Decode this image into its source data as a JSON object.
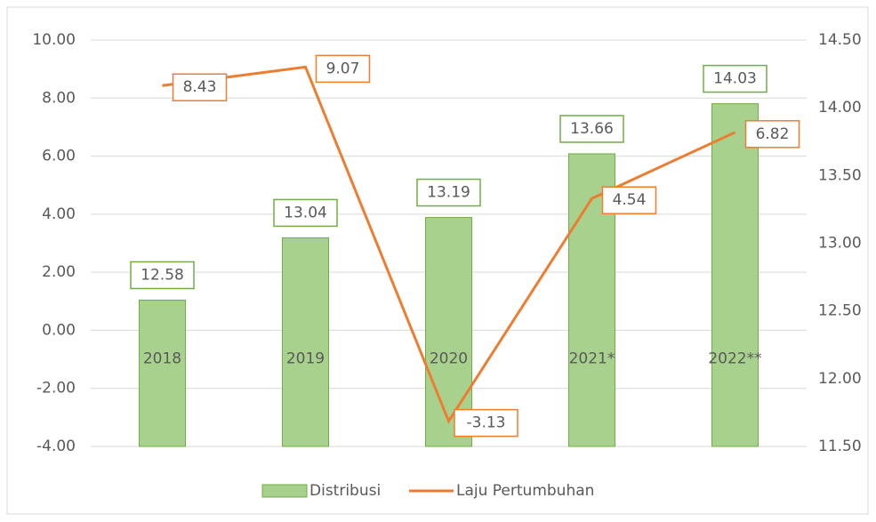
{
  "chart_data": {
    "type": "bar-line",
    "categories": [
      "2018",
      "2019",
      "2020",
      "2021*",
      "2022**"
    ],
    "series": [
      {
        "name": "Distribusi",
        "type": "bar",
        "axis": "y2",
        "color": "#a9d18e",
        "values": [
          12.58,
          13.04,
          13.19,
          13.66,
          14.03
        ]
      },
      {
        "name": "Laju Pertumbuhan",
        "type": "line",
        "axis": "y",
        "color": "#ed7d31",
        "values": [
          8.43,
          9.07,
          -3.13,
          4.54,
          6.82
        ]
      }
    ],
    "ylim": [
      -4,
      10
    ],
    "yticks": [
      {
        "value": -4,
        "label": "-4.00"
      },
      {
        "value": -2,
        "label": "-2.00"
      },
      {
        "value": 0,
        "label": "0.00"
      },
      {
        "value": 2,
        "label": "2.00"
      },
      {
        "value": 4,
        "label": "4.00"
      },
      {
        "value": 6,
        "label": "6.00"
      },
      {
        "value": 8,
        "label": "8.00"
      },
      {
        "value": 10,
        "label": "10.00"
      }
    ],
    "y2lim": [
      11.5,
      14.5
    ],
    "y2ticks": [
      {
        "value": 11.5,
        "label": "11.50"
      },
      {
        "value": 12,
        "label": "12.00"
      },
      {
        "value": 12.5,
        "label": "12.50"
      },
      {
        "value": 13,
        "label": "13.00"
      },
      {
        "value": 13.5,
        "label": "13.50"
      },
      {
        "value": 14,
        "label": "14.00"
      },
      {
        "value": 14.5,
        "label": "14.50"
      }
    ],
    "grid": true,
    "legend": "bottom"
  }
}
